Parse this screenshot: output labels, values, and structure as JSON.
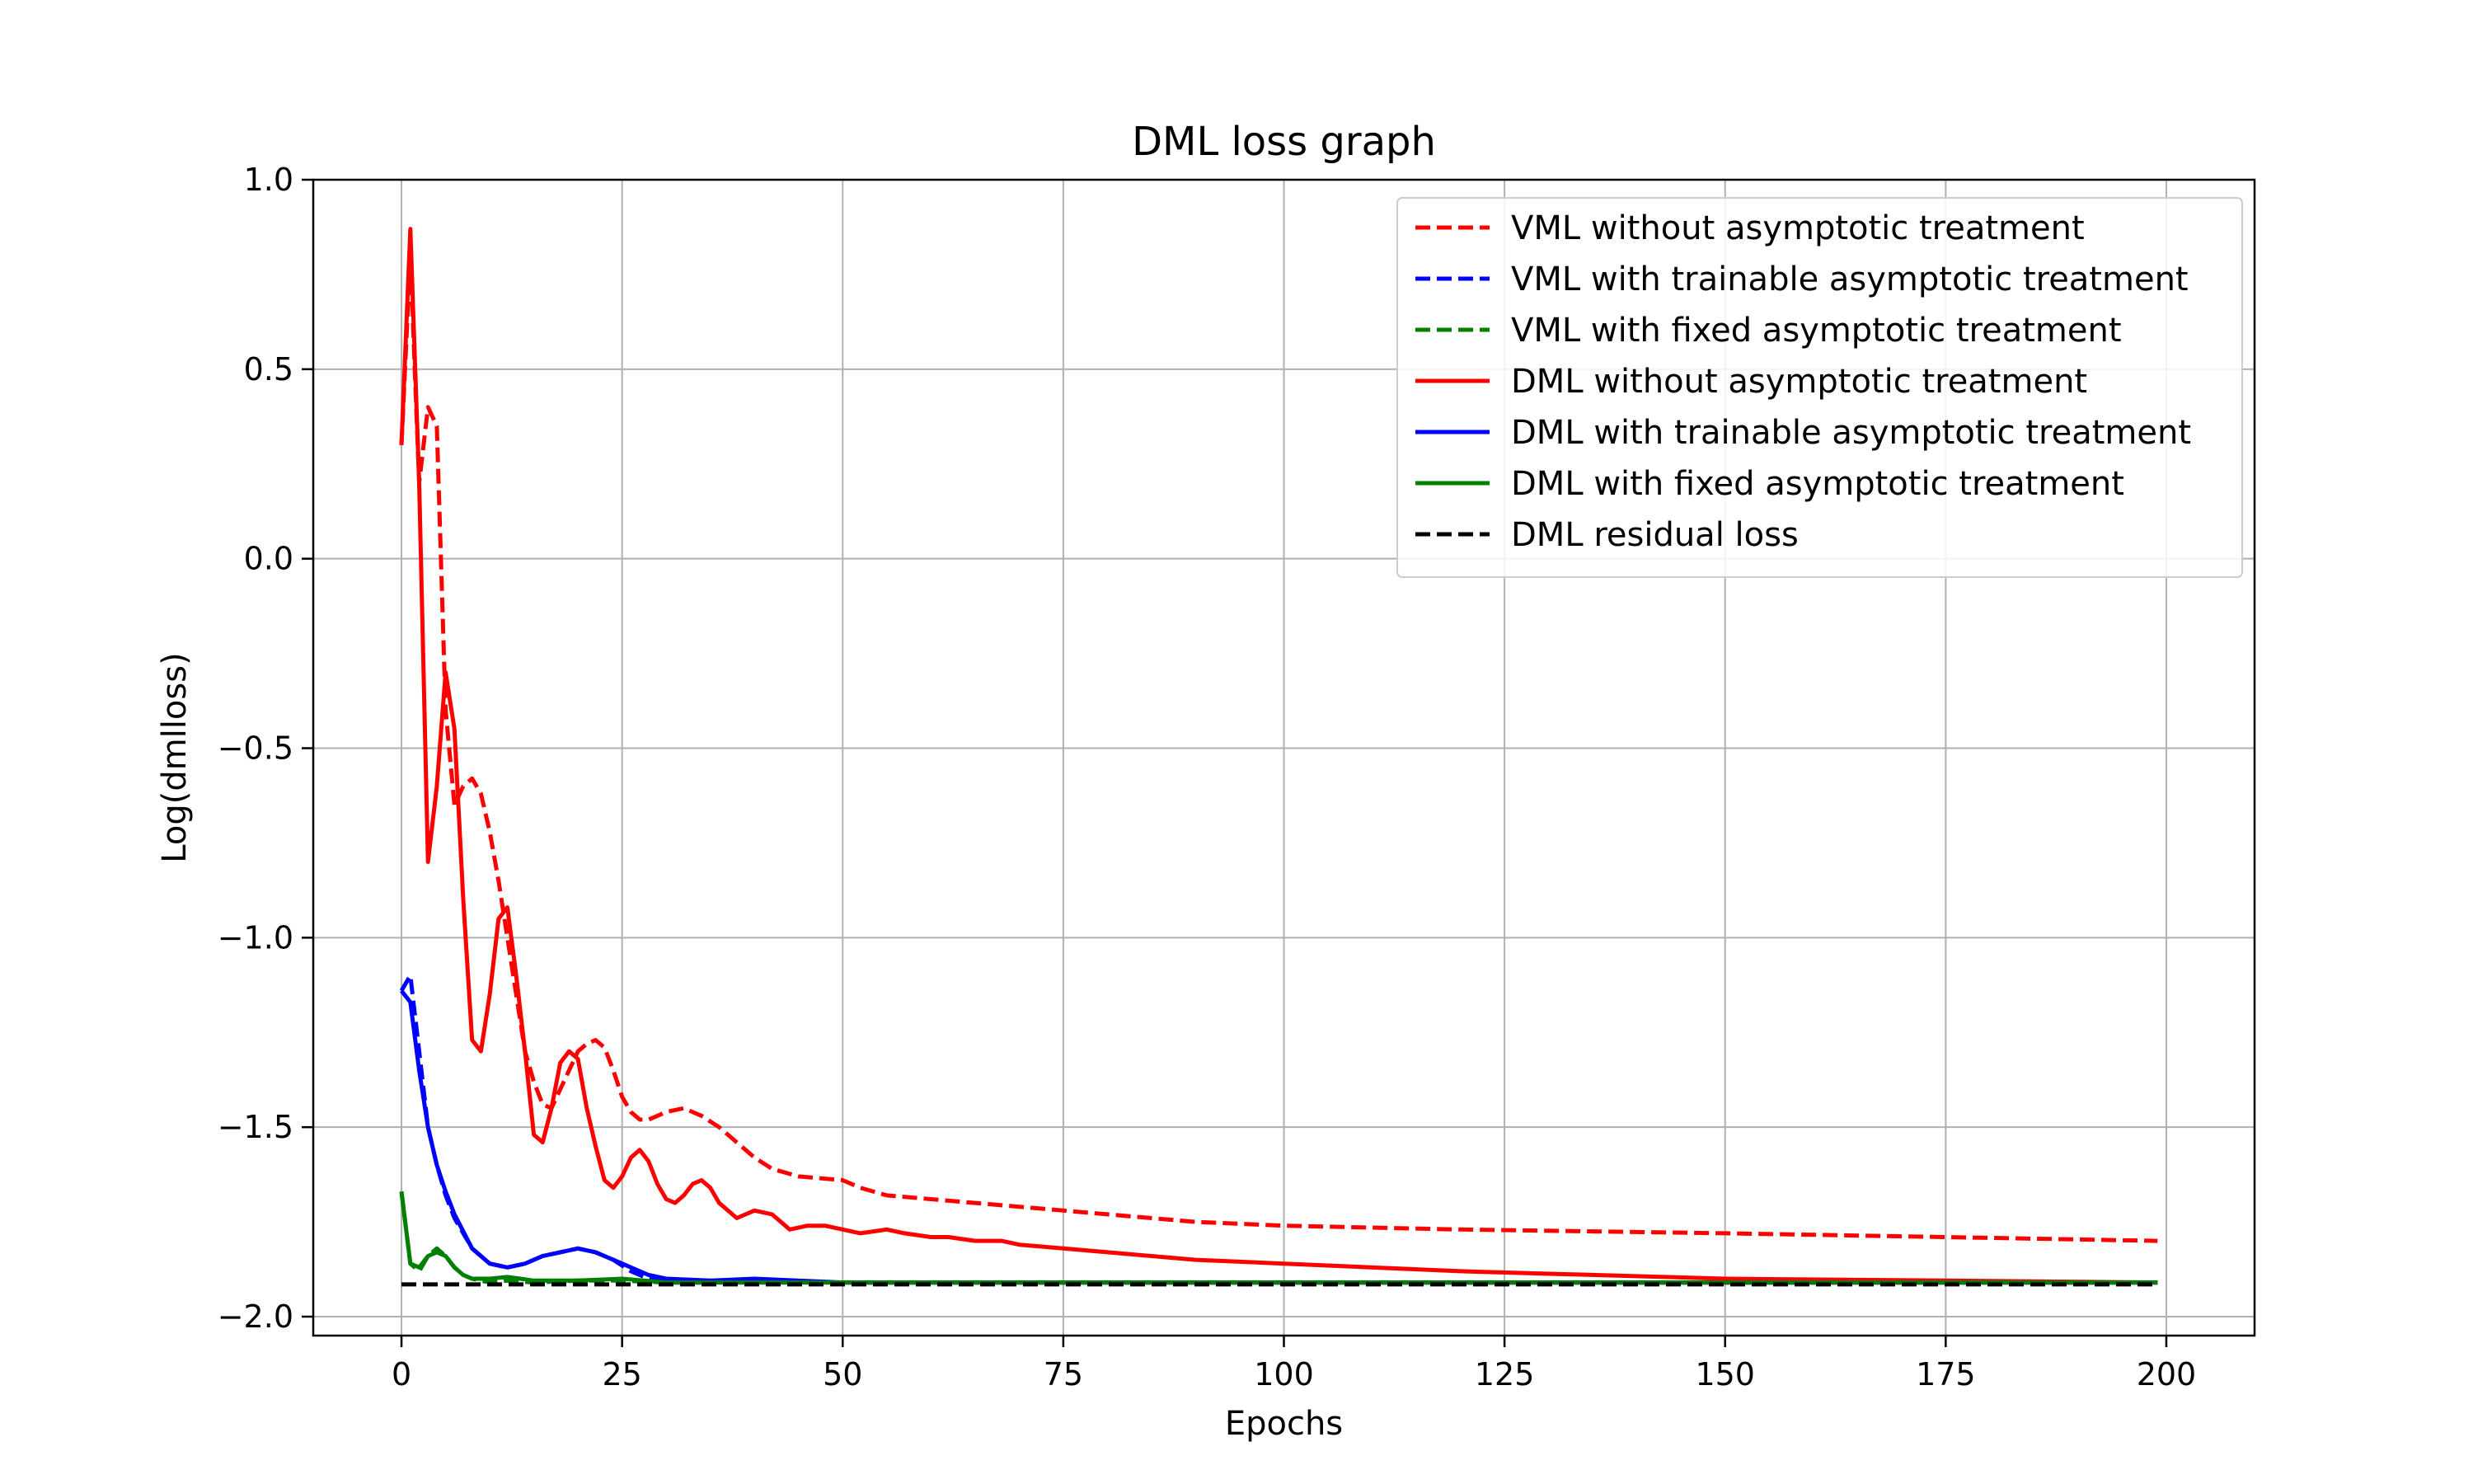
{
  "chart_data": {
    "type": "line",
    "title": "DML loss graph",
    "xlabel": "Epochs",
    "ylabel": "Log(dmlloss)",
    "xlim": [
      -10,
      210
    ],
    "ylim": [
      -2.05,
      1.0
    ],
    "xticks": [
      0,
      25,
      50,
      75,
      100,
      125,
      150,
      175,
      200
    ],
    "xtick_labels": [
      "0",
      "25",
      "50",
      "75",
      "100",
      "125",
      "150",
      "175",
      "200"
    ],
    "yticks": [
      1.0,
      0.5,
      0.0,
      -0.5,
      -1.0,
      -1.5,
      -2.0
    ],
    "ytick_labels": [
      "1.0",
      "0.5",
      "0.0",
      "−0.5",
      "−1.0",
      "−1.5",
      "−2.0"
    ],
    "grid": true,
    "legend_position": "top-right",
    "series": [
      {
        "name": "VML without asymptotic treatment",
        "color": "#ff0000",
        "style": "dashed",
        "x": [
          0,
          1,
          2,
          3,
          4,
          5,
          6,
          7,
          8,
          9,
          10,
          11,
          12,
          13,
          14,
          15,
          16,
          17,
          18,
          19,
          20,
          21,
          22,
          23,
          24,
          25,
          26,
          27,
          28,
          29,
          30,
          32,
          34,
          36,
          38,
          40,
          42,
          45,
          50,
          52,
          55,
          60,
          65,
          70,
          75,
          80,
          90,
          100,
          120,
          150,
          175,
          199
        ],
        "y": [
          0.3,
          0.8,
          0.2,
          0.4,
          0.35,
          -0.4,
          -0.65,
          -0.6,
          -0.58,
          -0.62,
          -0.72,
          -0.85,
          -1.0,
          -1.15,
          -1.3,
          -1.38,
          -1.44,
          -1.45,
          -1.4,
          -1.35,
          -1.3,
          -1.28,
          -1.27,
          -1.29,
          -1.35,
          -1.42,
          -1.46,
          -1.48,
          -1.48,
          -1.47,
          -1.46,
          -1.45,
          -1.47,
          -1.5,
          -1.54,
          -1.58,
          -1.61,
          -1.63,
          -1.64,
          -1.66,
          -1.68,
          -1.69,
          -1.7,
          -1.71,
          -1.72,
          -1.73,
          -1.75,
          -1.76,
          -1.77,
          -1.78,
          -1.79,
          -1.8
        ]
      },
      {
        "name": "VML with trainable asymptotic treatment",
        "color": "#0000ff",
        "style": "dashed",
        "x": [
          0,
          1,
          2,
          3,
          4,
          5,
          6,
          8,
          10,
          12,
          14,
          16,
          18,
          20,
          22,
          24,
          26,
          28,
          30,
          35,
          40,
          50,
          100,
          150,
          199
        ],
        "y": [
          -1.14,
          -1.1,
          -1.3,
          -1.5,
          -1.6,
          -1.68,
          -1.74,
          -1.82,
          -1.86,
          -1.87,
          -1.86,
          -1.84,
          -1.83,
          -1.82,
          -1.83,
          -1.85,
          -1.88,
          -1.9,
          -1.91,
          -1.91,
          -1.905,
          -1.91,
          -1.91,
          -1.91,
          -1.91
        ]
      },
      {
        "name": "VML with fixed asymptotic treatment",
        "color": "#008000",
        "style": "dashed",
        "x": [
          0,
          1,
          2,
          3,
          4,
          5,
          6,
          7,
          8,
          10,
          12,
          15,
          20,
          25,
          30,
          50,
          100,
          150,
          199
        ],
        "y": [
          -1.67,
          -1.86,
          -1.88,
          -1.84,
          -1.82,
          -1.84,
          -1.87,
          -1.89,
          -1.9,
          -1.91,
          -1.905,
          -1.91,
          -1.905,
          -1.905,
          -1.91,
          -1.91,
          -1.91,
          -1.91,
          -1.91
        ]
      },
      {
        "name": "DML without asymptotic treatment",
        "color": "#ff0000",
        "style": "solid",
        "x": [
          0,
          1,
          2,
          3,
          4,
          5,
          6,
          7,
          8,
          9,
          10,
          11,
          12,
          13,
          14,
          15,
          16,
          17,
          18,
          19,
          20,
          21,
          22,
          23,
          24,
          25,
          26,
          27,
          28,
          29,
          30,
          31,
          32,
          33,
          34,
          35,
          36,
          38,
          40,
          42,
          44,
          46,
          48,
          50,
          52,
          55,
          57,
          60,
          62,
          65,
          68,
          70,
          75,
          80,
          90,
          100,
          120,
          150,
          175,
          199
        ],
        "y": [
          0.3,
          0.87,
          0.2,
          -0.8,
          -0.6,
          -0.3,
          -0.45,
          -0.9,
          -1.27,
          -1.3,
          -1.15,
          -0.95,
          -0.92,
          -1.1,
          -1.3,
          -1.52,
          -1.54,
          -1.45,
          -1.33,
          -1.3,
          -1.32,
          -1.45,
          -1.55,
          -1.64,
          -1.66,
          -1.63,
          -1.58,
          -1.56,
          -1.59,
          -1.65,
          -1.69,
          -1.7,
          -1.68,
          -1.65,
          -1.64,
          -1.66,
          -1.7,
          -1.74,
          -1.72,
          -1.73,
          -1.77,
          -1.76,
          -1.76,
          -1.77,
          -1.78,
          -1.77,
          -1.78,
          -1.79,
          -1.79,
          -1.8,
          -1.8,
          -1.81,
          -1.82,
          -1.83,
          -1.85,
          -1.86,
          -1.88,
          -1.9,
          -1.905,
          -1.91
        ]
      },
      {
        "name": "DML with trainable asymptotic treatment",
        "color": "#0000ff",
        "style": "solid",
        "x": [
          0,
          1,
          2,
          3,
          4,
          5,
          6,
          8,
          10,
          12,
          14,
          16,
          18,
          20,
          22,
          24,
          26,
          28,
          30,
          35,
          40,
          50,
          100,
          150,
          199
        ],
        "y": [
          -1.14,
          -1.17,
          -1.35,
          -1.5,
          -1.6,
          -1.67,
          -1.73,
          -1.82,
          -1.86,
          -1.87,
          -1.86,
          -1.84,
          -1.83,
          -1.82,
          -1.83,
          -1.85,
          -1.87,
          -1.89,
          -1.9,
          -1.905,
          -1.9,
          -1.91,
          -1.91,
          -1.91,
          -1.91
        ]
      },
      {
        "name": "DML with fixed asymptotic treatment",
        "color": "#008000",
        "style": "solid",
        "x": [
          0,
          1,
          2,
          3,
          4,
          5,
          6,
          7,
          8,
          10,
          12,
          15,
          20,
          25,
          30,
          50,
          100,
          150,
          199
        ],
        "y": [
          -1.67,
          -1.86,
          -1.87,
          -1.84,
          -1.83,
          -1.84,
          -1.87,
          -1.89,
          -1.9,
          -1.9,
          -1.895,
          -1.905,
          -1.905,
          -1.9,
          -1.91,
          -1.91,
          -1.91,
          -1.91,
          -1.91
        ]
      },
      {
        "name": "DML residual loss",
        "color": "#000000",
        "style": "dashed",
        "x": [
          0,
          199
        ],
        "y": [
          -1.915,
          -1.915
        ]
      }
    ]
  }
}
